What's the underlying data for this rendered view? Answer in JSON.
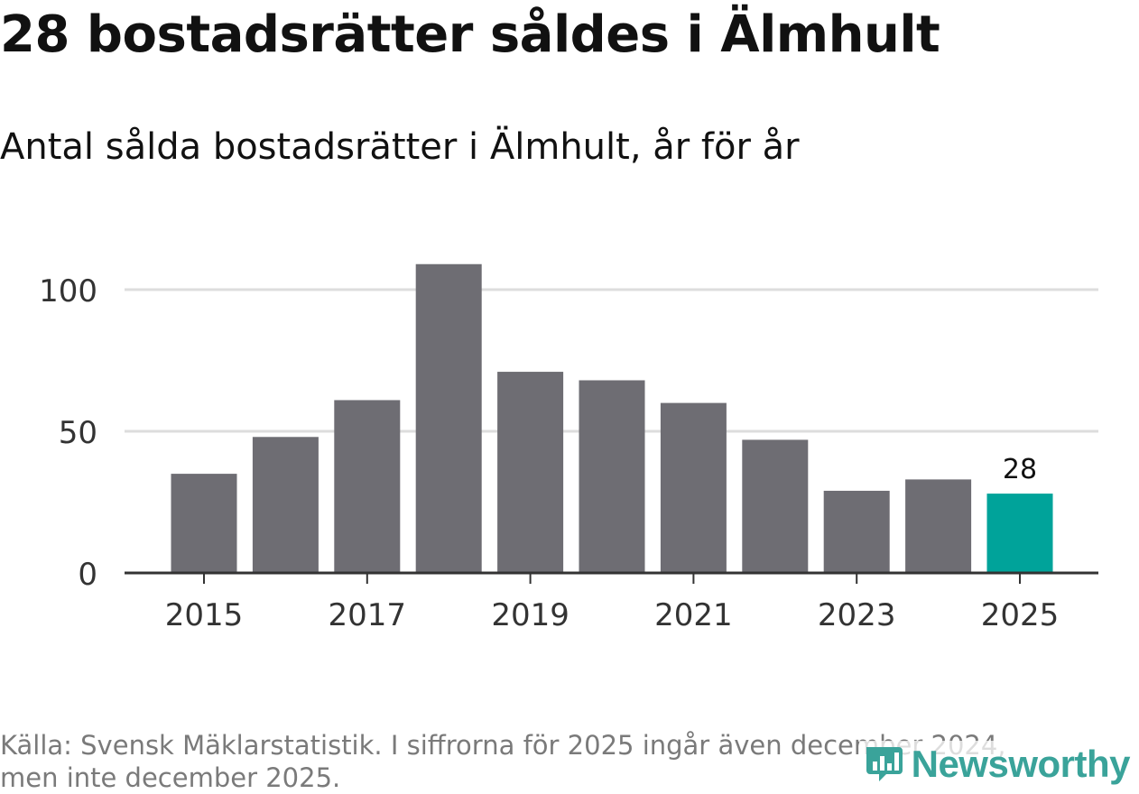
{
  "header": {
    "title": "28 bostadsrätter såldes i Älmhult",
    "subtitle": "Antal sålda bostadsrätter i Älmhult, år för år"
  },
  "footer": {
    "source_line1": "Källa: Svensk Mäklarstatistik. I siffrorna för 2025 ingår även december 2024,",
    "source_line2": "men inte december 2025."
  },
  "logo": {
    "text": "Newsworthy",
    "icon": "newsworthy-logo-icon"
  },
  "colors": {
    "bar": "#6e6d73",
    "highlight": "#00a39a",
    "grid": "#dddddd",
    "axis": "#333333",
    "tick_text": "#333333"
  },
  "chart_data": {
    "type": "bar",
    "title": "28 bostadsrätter såldes i Älmhult",
    "subtitle": "Antal sålda bostadsrätter i Älmhult, år för år",
    "categories": [
      "2015",
      "2016",
      "2017",
      "2018",
      "2019",
      "2020",
      "2021",
      "2022",
      "2023",
      "2024",
      "2025"
    ],
    "values": [
      35,
      48,
      61,
      109,
      71,
      68,
      60,
      47,
      29,
      33,
      28
    ],
    "highlight_index": 10,
    "highlight_label": "28",
    "x_tick_labels": [
      "2015",
      "2017",
      "2019",
      "2021",
      "2023",
      "2025"
    ],
    "y_ticks": [
      0,
      50,
      100
    ],
    "y_tick_labels": [
      "0",
      "50",
      "100"
    ],
    "ylim": [
      0,
      110
    ],
    "xlabel": "",
    "ylabel": "",
    "grid": true,
    "legend": "none"
  }
}
